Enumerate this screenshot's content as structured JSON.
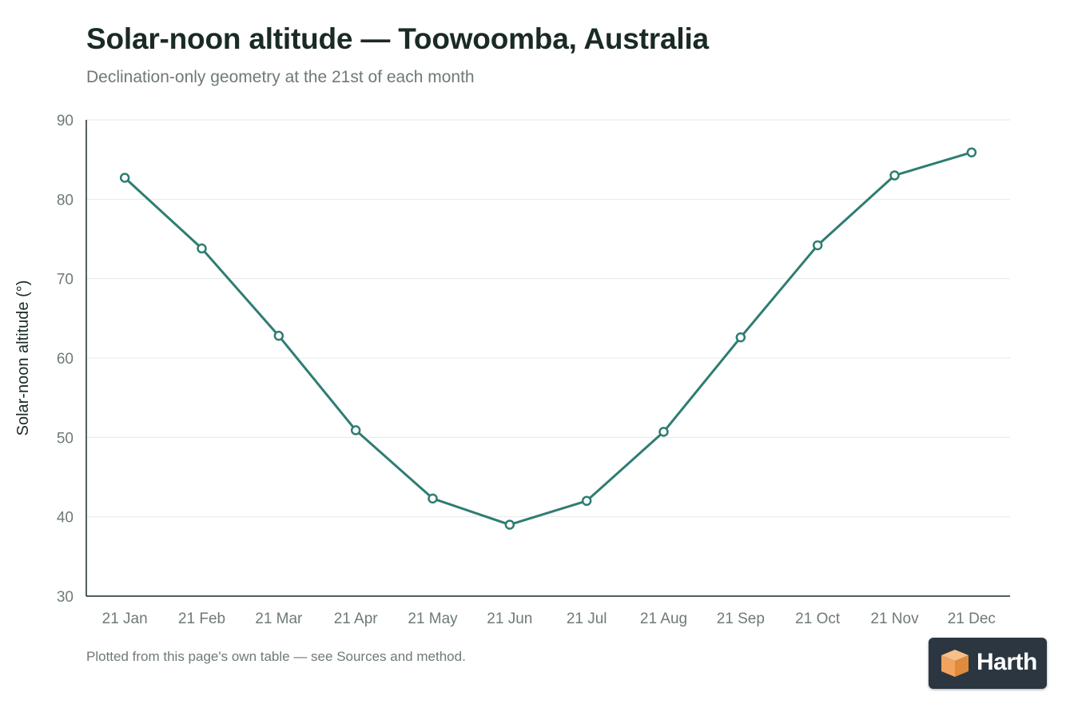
{
  "title": "Solar-noon altitude — Toowoomba, Australia",
  "subtitle": "Declination-only geometry at the 21st of each month",
  "footnote": "Plotted from this page's own table — see Sources and method.",
  "brand": {
    "name": "Harth",
    "logo_icon": "cube-icon",
    "colors": {
      "background": "#2b3640",
      "icon": "#f2a35e"
    }
  },
  "colors": {
    "line": "#2e7d72",
    "marker_fill": "#ffffff",
    "grid": "#e6e9e8",
    "axis": "#1a2a26",
    "tick_text": "#6e7a76"
  },
  "chart_data": {
    "type": "line",
    "title": "Solar-noon altitude — Toowoomba, Australia",
    "subtitle": "Declination-only geometry at the 21st of each month",
    "xlabel": "",
    "ylabel": "Solar-noon altitude (°)",
    "categories": [
      "21 Jan",
      "21 Feb",
      "21 Mar",
      "21 Apr",
      "21 May",
      "21 Jun",
      "21 Jul",
      "21 Aug",
      "21 Sep",
      "21 Oct",
      "21 Nov",
      "21 Dec"
    ],
    "series": [
      {
        "values": [
          82.7,
          73.8,
          62.8,
          50.9,
          42.3,
          39.0,
          42.0,
          50.7,
          62.6,
          74.2,
          83.0,
          85.9
        ]
      }
    ],
    "ylim": [
      30,
      90
    ],
    "yticks": [
      30,
      40,
      50,
      60,
      70,
      80,
      90
    ],
    "grid": true,
    "legend": "none"
  }
}
